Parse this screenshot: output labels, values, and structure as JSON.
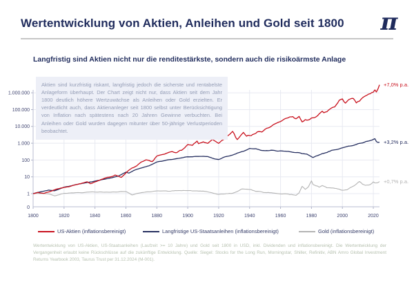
{
  "header": {
    "title": "Wertentwicklung von Aktien, Anleihen und Gold seit 1800",
    "logo_glyph": "π"
  },
  "subtitle": "Langfristig sind Aktien nicht nur die renditestärkste, sondern auch die risikoärmste Anlage",
  "info_box": {
    "text": "Aktien sind kurzfristig riskant, langfristig jedoch die sicherste und rentabelste Anlageform überhaupt. Der Chart zeigt nicht nur, dass Aktien seit dem Jahr 1800 deutlich höhere Wertzuwächse als Anleihen oder Gold erzielten. Er verdeutlicht auch, dass Aktienanleger seit 1800 selbst unter Berücksichtigung von Inflation nach spätestens nach 20 Jahren Gewinne verbuchten. Bei Anleihen oder Gold wurden dagegen mitunter über 50-jährige Verlustperioden beobachtet."
  },
  "chart_data": {
    "type": "line",
    "y_axis": {
      "scale": "log",
      "labels_top_to_bottom": [
        "1.000.000",
        "100.000",
        "10.000",
        "1.000",
        "100",
        "10",
        "1",
        "0"
      ]
    },
    "x_axis": {
      "tick_labels": [
        "1800",
        "1820",
        "1840",
        "1860",
        "1880",
        "1900",
        "1920",
        "1940",
        "1960",
        "1980",
        "2000",
        "2020"
      ],
      "range": [
        1800,
        2024
      ]
    },
    "grid": true,
    "colors": {
      "stocks": "#c8101c",
      "bonds": "#252e5f",
      "gold": "#b3b3b3"
    },
    "series": [
      {
        "name": "US-Aktien (inflationsbereinigt)",
        "color": "#c8101c",
        "annotation": "+7,0% p.a.",
        "points": [
          [
            1800,
            1
          ],
          [
            1803,
            1.15
          ],
          [
            1807,
            1.05
          ],
          [
            1812,
            1.45
          ],
          [
            1815,
            1.9
          ],
          [
            1820,
            2.3
          ],
          [
            1825,
            3
          ],
          [
            1831,
            3.9
          ],
          [
            1835,
            4.8
          ],
          [
            1837,
            4
          ],
          [
            1840,
            5.2
          ],
          [
            1845,
            7.5
          ],
          [
            1850,
            10
          ],
          [
            1853,
            13
          ],
          [
            1857,
            9.5
          ],
          [
            1860,
            17
          ],
          [
            1863,
            28
          ],
          [
            1866,
            40
          ],
          [
            1870,
            70
          ],
          [
            1873,
            95
          ],
          [
            1877,
            82
          ],
          [
            1880,
            170
          ],
          [
            1884,
            200
          ],
          [
            1887,
            260
          ],
          [
            1890,
            330
          ],
          [
            1893,
            290
          ],
          [
            1896,
            380
          ],
          [
            1900,
            780
          ],
          [
            1903,
            720
          ],
          [
            1906,
            1250
          ],
          [
            1907,
            930
          ],
          [
            1910,
            1150
          ],
          [
            1913,
            1050
          ],
          [
            1916,
            1550
          ],
          [
            1920,
            900
          ],
          [
            1922,
            1350
          ],
          [
            1925,
            2200
          ],
          [
            1927,
            3200
          ],
          [
            1929,
            5200
          ],
          [
            1930,
            3700
          ],
          [
            1931,
            2300
          ],
          [
            1932,
            1750
          ],
          [
            1934,
            2800
          ],
          [
            1936,
            4800
          ],
          [
            1938,
            3000
          ],
          [
            1939,
            3400
          ],
          [
            1941,
            2700
          ],
          [
            1945,
            5000
          ],
          [
            1948,
            4700
          ],
          [
            1950,
            6500
          ],
          [
            1953,
            8200
          ],
          [
            1956,
            14000
          ],
          [
            1958,
            16500
          ],
          [
            1961,
            23000
          ],
          [
            1963,
            26000
          ],
          [
            1966,
            36000
          ],
          [
            1968,
            38000
          ],
          [
            1970,
            28000
          ],
          [
            1972,
            36000
          ],
          [
            1974,
            17500
          ],
          [
            1976,
            26000
          ],
          [
            1978,
            23500
          ],
          [
            1980,
            28000
          ],
          [
            1982,
            30000
          ],
          [
            1985,
            52000
          ],
          [
            1987,
            74000
          ],
          [
            1988,
            66000
          ],
          [
            1990,
            78000
          ],
          [
            1993,
            120000
          ],
          [
            1995,
            160000
          ],
          [
            1998,
            320000
          ],
          [
            2000,
            430000
          ],
          [
            2002,
            260000
          ],
          [
            2004,
            340000
          ],
          [
            2007,
            430000
          ],
          [
            2009,
            250000
          ],
          [
            2011,
            330000
          ],
          [
            2013,
            480000
          ],
          [
            2015,
            600000
          ],
          [
            2017,
            790000
          ],
          [
            2019,
            1000000
          ],
          [
            2020,
            1080000
          ],
          [
            2021,
            1500000
          ],
          [
            2022,
            1150000
          ],
          [
            2023,
            1750000
          ],
          [
            2024,
            3000000
          ]
        ]
      },
      {
        "name": "Langfristige US-Staatsanleihen (inflationsbereinigt)",
        "color": "#252e5f",
        "annotation": "+3,2% p.a.",
        "points": [
          [
            1800,
            1
          ],
          [
            1805,
            1.3
          ],
          [
            1810,
            1.6
          ],
          [
            1814,
            1.5
          ],
          [
            1820,
            2.4
          ],
          [
            1825,
            3
          ],
          [
            1830,
            3.8
          ],
          [
            1835,
            4.6
          ],
          [
            1840,
            5.5
          ],
          [
            1845,
            7
          ],
          [
            1850,
            8.5
          ],
          [
            1855,
            11
          ],
          [
            1860,
            19
          ],
          [
            1862,
            17
          ],
          [
            1865,
            24
          ],
          [
            1870,
            33
          ],
          [
            1875,
            46
          ],
          [
            1880,
            75
          ],
          [
            1885,
            92
          ],
          [
            1890,
            112
          ],
          [
            1895,
            132
          ],
          [
            1900,
            155
          ],
          [
            1905,
            165
          ],
          [
            1910,
            168
          ],
          [
            1913,
            158
          ],
          [
            1917,
            118
          ],
          [
            1920,
            108
          ],
          [
            1923,
            140
          ],
          [
            1926,
            170
          ],
          [
            1929,
            200
          ],
          [
            1932,
            262
          ],
          [
            1936,
            330
          ],
          [
            1940,
            480
          ],
          [
            1942,
            450
          ],
          [
            1944,
            470
          ],
          [
            1947,
            385
          ],
          [
            1950,
            360
          ],
          [
            1954,
            385
          ],
          [
            1958,
            330
          ],
          [
            1962,
            345
          ],
          [
            1965,
            330
          ],
          [
            1968,
            292
          ],
          [
            1971,
            282
          ],
          [
            1974,
            232
          ],
          [
            1977,
            232
          ],
          [
            1980,
            162
          ],
          [
            1981,
            145
          ],
          [
            1984,
            182
          ],
          [
            1987,
            232
          ],
          [
            1990,
            282
          ],
          [
            1993,
            380
          ],
          [
            1997,
            450
          ],
          [
            2000,
            520
          ],
          [
            2003,
            650
          ],
          [
            2006,
            680
          ],
          [
            2008,
            800
          ],
          [
            2011,
            1000
          ],
          [
            2014,
            1150
          ],
          [
            2016,
            1300
          ],
          [
            2019,
            1550
          ],
          [
            2021,
            1900
          ],
          [
            2022,
            1280
          ],
          [
            2023,
            1140
          ],
          [
            2024,
            1150
          ]
        ]
      },
      {
        "name": "Gold (inflationsbereinigt)",
        "color": "#b3b3b3",
        "annotation": "+0,7% p.a.",
        "points": [
          [
            1800,
            1
          ],
          [
            1805,
            1.05
          ],
          [
            1810,
            0.95
          ],
          [
            1814,
            0.75
          ],
          [
            1820,
            1.05
          ],
          [
            1830,
            1.15
          ],
          [
            1840,
            1.25
          ],
          [
            1850,
            1.2
          ],
          [
            1860,
            1.3
          ],
          [
            1864,
            0.85
          ],
          [
            1870,
            1.15
          ],
          [
            1880,
            1.4
          ],
          [
            1890,
            1.5
          ],
          [
            1900,
            1.5
          ],
          [
            1910,
            1.4
          ],
          [
            1915,
            1.2
          ],
          [
            1920,
            0.9
          ],
          [
            1925,
            1
          ],
          [
            1929,
            1.05
          ],
          [
            1933,
            1.5
          ],
          [
            1935,
            1.8
          ],
          [
            1940,
            1.7
          ],
          [
            1945,
            1.35
          ],
          [
            1950,
            1.2
          ],
          [
            1955,
            1.1
          ],
          [
            1960,
            1
          ],
          [
            1965,
            0.92
          ],
          [
            1970,
            0.8
          ],
          [
            1972,
            1.1
          ],
          [
            1974,
            2.6
          ],
          [
            1976,
            1.8
          ],
          [
            1978,
            2.4
          ],
          [
            1980,
            5.5
          ],
          [
            1981,
            3.6
          ],
          [
            1983,
            3
          ],
          [
            1985,
            2.4
          ],
          [
            1987,
            3
          ],
          [
            1990,
            2.3
          ],
          [
            1995,
            2
          ],
          [
            2000,
            1.5
          ],
          [
            2003,
            1.8
          ],
          [
            2006,
            2.6
          ],
          [
            2008,
            3.2
          ],
          [
            2010,
            4.5
          ],
          [
            2011,
            5.2
          ],
          [
            2013,
            3.8
          ],
          [
            2015,
            3.2
          ],
          [
            2018,
            3.4
          ],
          [
            2020,
            4.8
          ],
          [
            2021,
            4.4
          ],
          [
            2022,
            4.3
          ],
          [
            2023,
            4.6
          ],
          [
            2024,
            5.2
          ]
        ]
      }
    ]
  },
  "footnote": "Wertentwicklung von US-Aktien, US-Staatsanleihen (Laufzeit >= 10 Jahre) und Gold seit 1800 in USD, inkl. Dividenden und inflationsbereinigt. Die Wertentwicklung der Vergangenheit erlaubt keine Rückschlüsse auf die zukünftige Entwicklung. Quelle: Siegel: Stocks for the Long Run, Morningstar, Shiller, Refinitiv, ABN Amro Global Investment Returns Yearbook 2003, Taurus Trust per 31.12.2024 (M-001)."
}
